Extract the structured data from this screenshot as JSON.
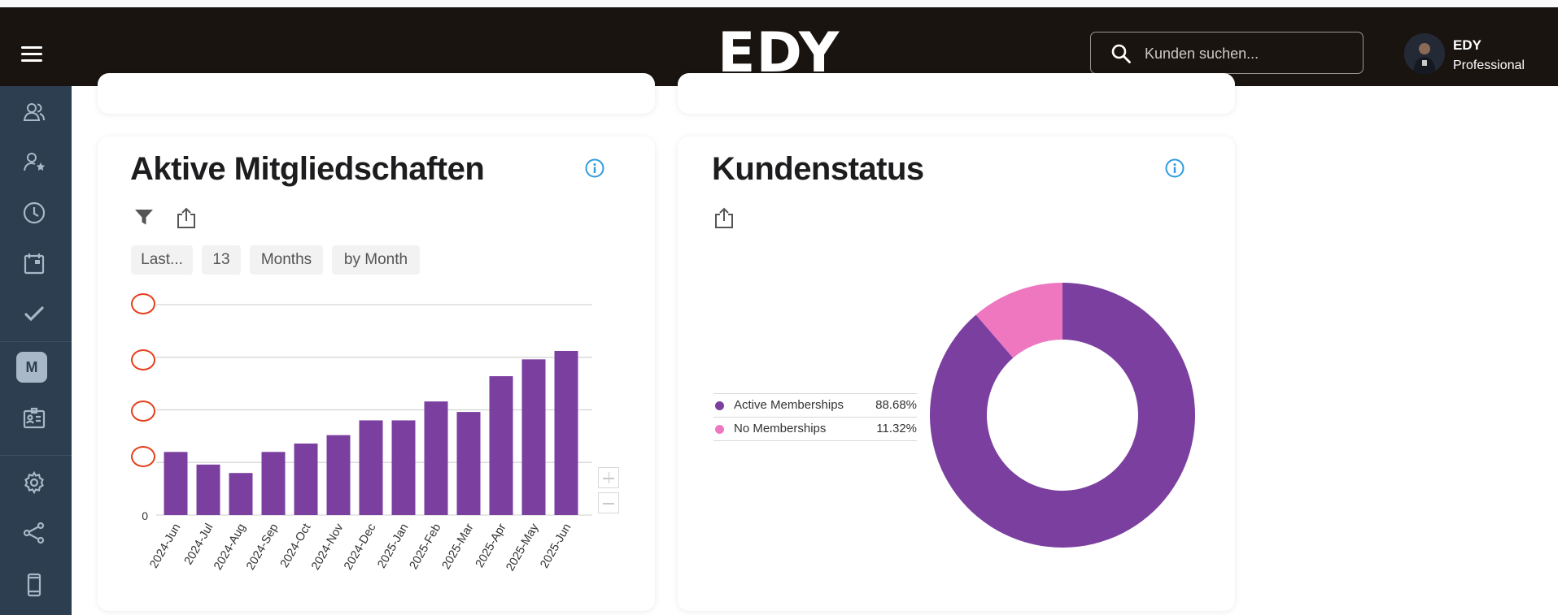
{
  "header": {
    "logo": "EDY",
    "search_placeholder": "Kunden suchen...",
    "user_name": "EDY",
    "user_plan": "Professional"
  },
  "sidebar": {
    "items": [
      {
        "icon": "users-icon"
      },
      {
        "icon": "user-star-icon"
      },
      {
        "icon": "clock-icon"
      },
      {
        "icon": "calendar-icon"
      },
      {
        "icon": "check-icon"
      },
      {
        "icon": "membership-icon",
        "label": "M"
      },
      {
        "icon": "id-card-icon"
      },
      {
        "icon": "gear-icon"
      },
      {
        "icon": "share-icon"
      },
      {
        "icon": "mobile-icon"
      }
    ]
  },
  "memberships_card": {
    "title": "Aktive Mitgliedschaften",
    "filters": [
      "Last...",
      "13",
      "Months",
      "by Month"
    ]
  },
  "status_card": {
    "title": "Kundenstatus"
  },
  "chart_data": [
    {
      "type": "bar",
      "categories": [
        "2024-Jun",
        "2024-Jul",
        "2024-Aug",
        "2024-Sep",
        "2024-Oct",
        "2024-Nov",
        "2024-Dec",
        "2025-Jan",
        "2025-Feb",
        "2025-Mar",
        "2025-Apr",
        "2025-May",
        "2025-Jun"
      ],
      "values": [
        30,
        24,
        20,
        30,
        34,
        38,
        45,
        45,
        54,
        49,
        66,
        74,
        78
      ],
      "ylim": [
        0,
        100
      ],
      "y_tick_labels": [
        "0"
      ],
      "grid": true,
      "color": "#7b3fa0"
    },
    {
      "type": "pie",
      "donut": true,
      "labels": [
        "Active Memberships",
        "No Memberships"
      ],
      "values": [
        88.68,
        11.32
      ],
      "value_labels": [
        "88.68%",
        "11.32%"
      ],
      "colors": [
        "#7b3fa0",
        "#ee77c0"
      ],
      "legend": "left"
    }
  ]
}
